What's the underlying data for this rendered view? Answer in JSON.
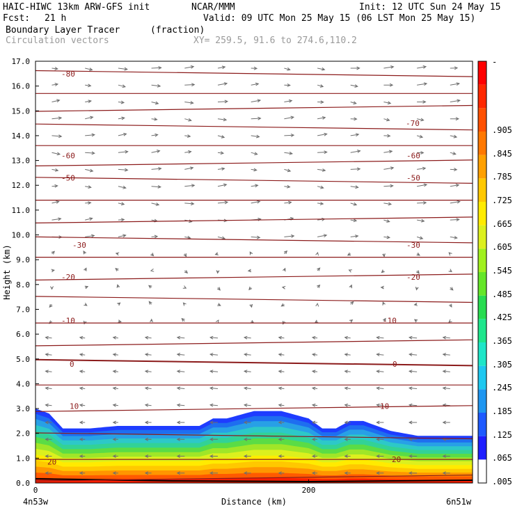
{
  "header": {
    "model": "HAIC-HIWC 13km ARW-GFS init",
    "center": "NCAR/MMM",
    "init": "Init: 12 UTC Sun 24 May 15",
    "fcst_label": "Fcst:",
    "fcst_value": "21 h",
    "valid": "Valid: 09 UTC Mon 25 May 15 (06 LST Mon 25 May 15)",
    "field_name": "Boundary Layer Tracer",
    "field_units": "(fraction)",
    "overlay_name": "Circulation vectors",
    "xy_range": "XY= 259.5, 91.6 to 274.6,110.2"
  },
  "chart_data": {
    "type": "heatmap",
    "title": "Boundary Layer Tracer",
    "xlabel": "Distance (km)",
    "ylabel": "Height (km)",
    "x_endpoints": [
      "4n53w",
      "6n51w"
    ],
    "x_ticks": [
      0,
      200
    ],
    "x_range_km": [
      0,
      320
    ],
    "ylim": [
      0,
      17
    ],
    "y_ticks": [
      0.0,
      1.0,
      2.0,
      3.0,
      4.0,
      5.0,
      6.0,
      7.0,
      8.0,
      9.0,
      10.0,
      11.0,
      12.0,
      13.0,
      14.0,
      15.0,
      16.0,
      17.0
    ],
    "tracer_top_km": {
      "x": [
        0,
        10,
        20,
        40,
        60,
        80,
        100,
        120,
        130,
        140,
        160,
        180,
        200,
        210,
        220,
        230,
        240,
        260,
        280,
        300,
        320
      ],
      "y": [
        3.0,
        2.8,
        2.2,
        2.2,
        2.3,
        2.3,
        2.3,
        2.3,
        2.6,
        2.6,
        2.9,
        2.9,
        2.6,
        2.2,
        2.2,
        2.5,
        2.5,
        2.1,
        1.9,
        1.9,
        1.9
      ]
    },
    "isotherm_labels_c": [
      -80,
      -70,
      -60,
      -50,
      -30,
      -20,
      -10,
      0,
      10,
      20
    ],
    "colorbar": {
      "labels": [
        ".005",
        ".065",
        ".125",
        ".185",
        ".245",
        ".305",
        ".365",
        ".425",
        ".485",
        ".545",
        ".605",
        ".665",
        ".725",
        ".785",
        ".845",
        ".905"
      ],
      "top_label": "-"
    }
  }
}
